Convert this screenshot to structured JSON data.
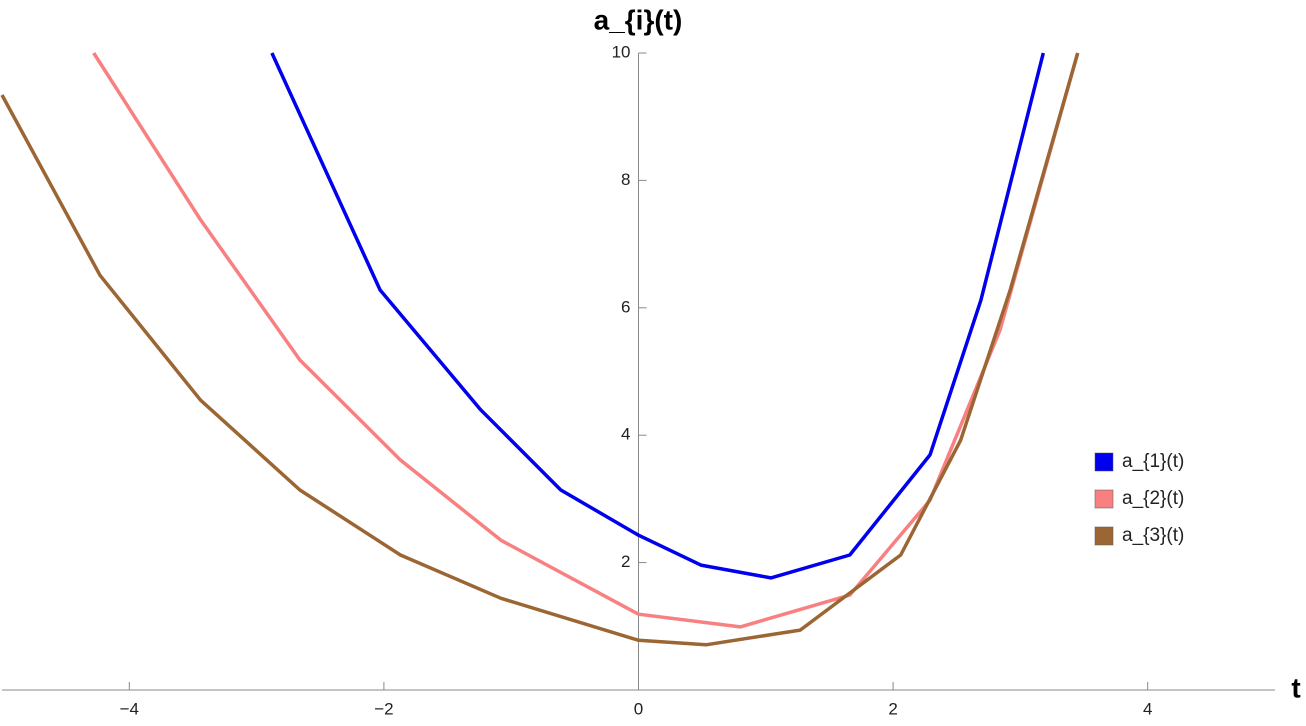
{
  "chart_data": {
    "type": "line",
    "title": "a_{i}(t)",
    "x_label": "t",
    "xlim": [
      -5,
      5
    ],
    "ylim": [
      0,
      10
    ],
    "xticks": [
      {
        "value": -4,
        "label": "−4"
      },
      {
        "value": -2,
        "label": "−2"
      },
      0,
      2,
      4
    ],
    "yticks": [
      2,
      4,
      6,
      8,
      10
    ],
    "legend": "right",
    "series": [
      {
        "name": "a_{1}(t)",
        "color": "#0000ee",
        "x": [
          -2.88,
          -2.03,
          -1.24,
          -0.61,
          0,
          0.49,
          1.04,
          1.66,
          2.29,
          2.69,
          3.18
        ],
        "values": [
          10,
          6.28,
          4.4,
          3.14,
          2.43,
          1.96,
          1.76,
          2.12,
          3.69,
          6.12,
          10
        ]
      },
      {
        "name": "a_{2}(t)",
        "color": "#f88080",
        "x": [
          -4.28,
          -3.44,
          -2.66,
          -1.87,
          -1.08,
          0,
          0.8,
          1.66,
          2.29,
          2.84,
          3.45
        ],
        "values": [
          10,
          7.38,
          5.18,
          3.61,
          2.35,
          1.19,
          0.99,
          1.49,
          2.98,
          5.65,
          10
        ]
      },
      {
        "name": "a_{3}(t)",
        "color": "#9b6633",
        "x": [
          -5.0,
          -4.23,
          -3.44,
          -2.66,
          -1.87,
          -1.08,
          0,
          0.53,
          1.27,
          2.06,
          2.53,
          2.92,
          3.45
        ],
        "values": [
          9.34,
          6.51,
          4.55,
          3.14,
          2.12,
          1.44,
          0.78,
          0.71,
          0.94,
          2.12,
          3.92,
          6.28,
          10
        ]
      }
    ]
  }
}
